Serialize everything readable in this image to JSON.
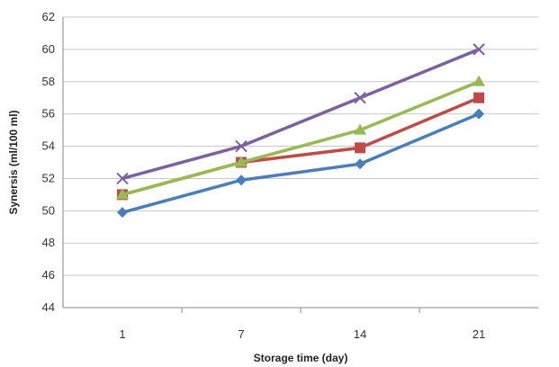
{
  "chart_data": {
    "type": "line",
    "title": "",
    "xlabel": "Storage time (day)",
    "ylabel": "Synersis (ml/100 ml)",
    "categories": [
      "1",
      "7",
      "14",
      "21"
    ],
    "ylim": [
      44,
      62
    ],
    "yticks": [
      44,
      46,
      48,
      50,
      52,
      54,
      56,
      58,
      60,
      62
    ],
    "grid": true,
    "legend": "none",
    "series": [
      {
        "color": "#4a7ebb",
        "marker": "diamond",
        "values": [
          49.9,
          51.9,
          52.9,
          56.0
        ]
      },
      {
        "color": "#be4b48",
        "marker": "square",
        "values": [
          51.0,
          53.0,
          53.9,
          57.0
        ]
      },
      {
        "color": "#98b954",
        "marker": "triangle",
        "values": [
          51.0,
          53.0,
          55.0,
          58.0
        ]
      },
      {
        "color": "#7d60a0",
        "marker": "x",
        "values": [
          52.0,
          54.0,
          57.0,
          60.0
        ]
      }
    ]
  }
}
